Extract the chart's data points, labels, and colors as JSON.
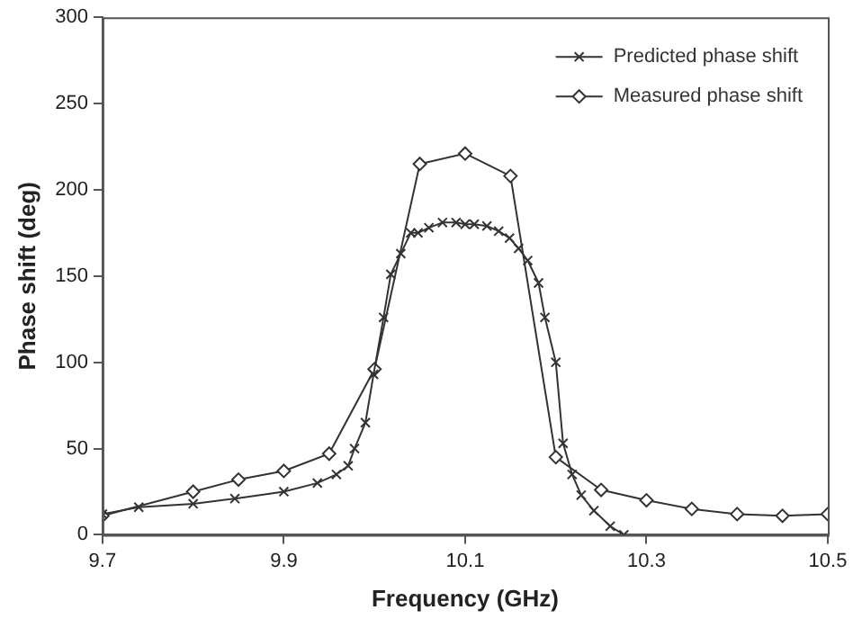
{
  "chart_data": {
    "type": "line",
    "xlabel": "Frequency (GHz)",
    "ylabel": "Phase shift (deg)",
    "xlim": [
      9.7,
      10.5
    ],
    "xticks": [
      9.7,
      9.9,
      10.1,
      10.3,
      10.5
    ],
    "ylim": [
      0,
      300
    ],
    "yticks": [
      0,
      50,
      100,
      150,
      200,
      250,
      300
    ],
    "grid": false,
    "legend": "top right",
    "series": [
      {
        "name": "Predicted phase shift",
        "color": "#333333",
        "marker": "cross",
        "x": [
          9.7,
          9.74,
          9.8,
          9.846,
          9.9,
          9.937,
          9.958,
          9.971,
          9.978,
          9.99,
          9.999,
          10.01,
          10.018,
          10.029,
          10.04,
          10.048,
          10.06,
          10.075,
          10.09,
          10.1,
          10.11,
          10.124,
          10.137,
          10.149,
          10.159,
          10.169,
          10.181,
          10.188,
          10.2,
          10.208,
          10.218,
          10.228,
          10.242,
          10.26,
          10.275
        ],
        "values": [
          12,
          16,
          18,
          21,
          25,
          30,
          35,
          40,
          50,
          65,
          93,
          126,
          151,
          163,
          175,
          175,
          178,
          181,
          181,
          180,
          180,
          179,
          176,
          172,
          166,
          159,
          146,
          126,
          100,
          53,
          35,
          23,
          14,
          5,
          0
        ]
      },
      {
        "name": "Measured phase shift",
        "color": "#333333",
        "marker": "diamond",
        "x": [
          9.7,
          9.8,
          9.85,
          9.9,
          9.95,
          10.0,
          10.05,
          10.1,
          10.15,
          10.2,
          10.25,
          10.3,
          10.35,
          10.4,
          10.45,
          10.5
        ],
        "values": [
          11,
          25,
          32,
          37,
          47,
          96,
          215,
          221,
          208,
          45,
          26,
          20,
          15,
          12,
          11,
          12
        ]
      }
    ]
  }
}
